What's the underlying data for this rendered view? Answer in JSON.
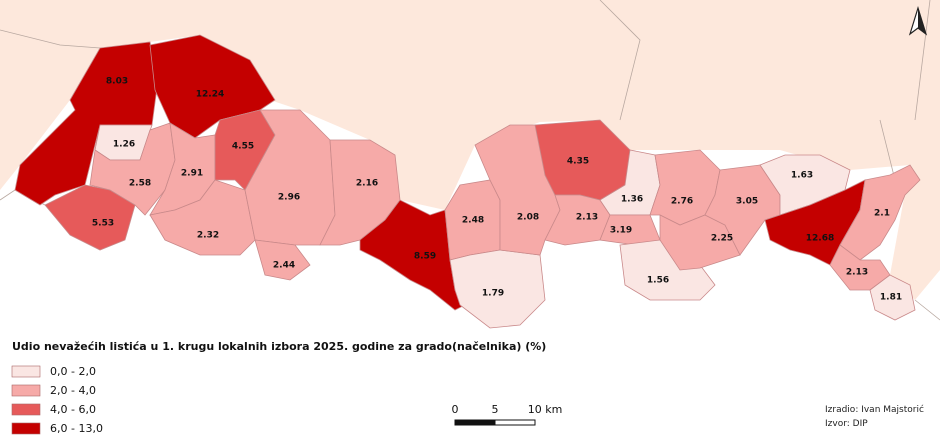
{
  "regions": [
    {
      "value": 8.03
    },
    {
      "value": 12.24
    },
    {
      "value": 1.26
    },
    {
      "value": 5.53
    },
    {
      "value": 2.58
    },
    {
      "value": 2.91
    },
    {
      "value": 4.55
    },
    {
      "value": 2.32
    },
    {
      "value": 2.96
    },
    {
      "value": 2.44
    },
    {
      "value": 2.16
    },
    {
      "value": 8.59
    },
    {
      "value": 2.48
    },
    {
      "value": 1.79
    },
    {
      "value": 2.08
    },
    {
      "value": 4.35
    },
    {
      "value": 2.13
    },
    {
      "value": 1.36
    },
    {
      "value": 3.19
    },
    {
      "value": 1.56
    },
    {
      "value": 2.76
    },
    {
      "value": 2.25
    },
    {
      "value": 3.05
    },
    {
      "value": 1.63
    },
    {
      "value": 12.68
    },
    {
      "value": 2.1
    },
    {
      "value": 2.13
    },
    {
      "value": 1.81
    }
  ],
  "legend": {
    "title": "Udio nevažećih listića u 1. krugu lokalnih izbora 2025. godine za grado(načelnika) (%)",
    "classes": [
      {
        "label": "0,0 - 2,0",
        "min": 0,
        "max": 2,
        "color": "#fae6e3"
      },
      {
        "label": "2,0 - 4,0",
        "min": 2,
        "max": 4,
        "color": "#f6aaa8"
      },
      {
        "label": "4,0 - 6,0",
        "min": 4,
        "max": 6,
        "color": "#e65a5a"
      },
      {
        "label": "6,0 - 13,0",
        "min": 6,
        "max": 13,
        "color": "#c40000"
      }
    ]
  },
  "scale_bar": {
    "labels": [
      "0",
      "5",
      "10 km"
    ]
  },
  "credits": [
    "Izradio: Ivan Majstorić",
    "Izvor: DIP"
  ]
}
